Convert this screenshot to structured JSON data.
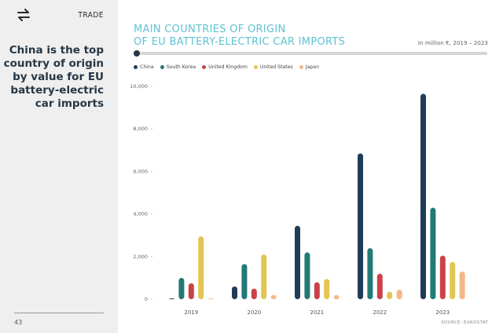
{
  "sidebar": {
    "section": "TRADE",
    "headline": "China is the top country of origin by value for EU battery-electric car imports",
    "page_number": "43",
    "icon": "swap-arrows-icon"
  },
  "colors": {
    "China": "#1f3d58",
    "South Korea": "#227a77",
    "United Kingdom": "#c94346",
    "United States": "#e3c553",
    "Japan": "#f4b78a",
    "title": "#5fc2d1"
  },
  "chart_data": {
    "type": "bar",
    "title_lines": [
      "MAIN COUNTRIES OF ORIGIN",
      "OF EU BATTERY-ELECTRIC CAR IMPORTS"
    ],
    "subtitle": "In million €, 2019 – 2023",
    "source": "SOURCE: EUROSTAT",
    "categories": [
      "2019",
      "2020",
      "2021",
      "2022",
      "2023"
    ],
    "ylim": [
      0,
      10000
    ],
    "yticks": [
      "10,000",
      "8,000",
      "6,000",
      "4,000",
      "2,000",
      "0"
    ],
    "ytick_values": [
      10000,
      8000,
      6000,
      4000,
      2000,
      0
    ],
    "grid": false,
    "legend_position": "top-left",
    "series": [
      {
        "name": "China",
        "values": [
          20,
          600,
          3450,
          6850,
          9650
        ]
      },
      {
        "name": "South Korea",
        "values": [
          1000,
          1650,
          2200,
          2400,
          4300
        ]
      },
      {
        "name": "United Kingdom",
        "values": [
          750,
          500,
          800,
          1200,
          2050
        ]
      },
      {
        "name": "United States",
        "values": [
          2950,
          2100,
          950,
          350,
          1750
        ]
      },
      {
        "name": "Japan",
        "values": [
          0,
          200,
          200,
          450,
          1300
        ]
      }
    ]
  }
}
